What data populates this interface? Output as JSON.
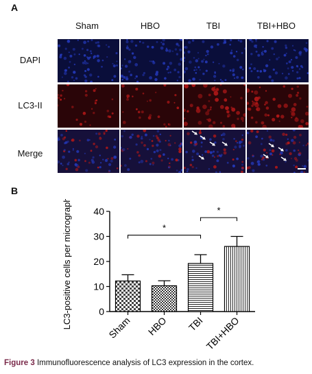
{
  "panel_a_letter": "A",
  "panel_b_letter": "B",
  "columns": [
    "Sham",
    "HBO",
    "TBI",
    "TBI+HBO"
  ],
  "rows": [
    "DAPI",
    "LC3-II",
    "Merge"
  ],
  "micrograph_colors": {
    "dapi_bg": "#0a0e3a",
    "dapi_dot": "#2438b8",
    "lc3_bg": "#2a0508",
    "lc3_dot": "#b01818",
    "merge_bg": "#16103a",
    "arrow": "#ffffff"
  },
  "arrows_shown_in": [
    "TBI",
    "TBI+HBO"
  ],
  "chart_data": {
    "type": "bar",
    "categories": [
      "Sham",
      "HBO",
      "TBI",
      "TBI+HBO"
    ],
    "values": [
      12.2,
      10.3,
      19.2,
      26.0
    ],
    "errors": [
      2.5,
      2.0,
      3.5,
      4.0
    ],
    "bar_patterns": [
      "checker",
      "checker-fine",
      "horizontal-lines",
      "vertical-lines"
    ],
    "ylabel": "LC3-positive cells per micrograph (%)",
    "ylim": [
      0,
      40
    ],
    "yticks": [
      0,
      10,
      20,
      30,
      40
    ],
    "significance": [
      {
        "from": "Sham",
        "to": "TBI",
        "label": "*"
      },
      {
        "from": "TBI",
        "to": "TBI+HBO",
        "label": "*"
      }
    ]
  },
  "caption": {
    "figure_label": "Figure 3",
    "text": "Immunofluorescence analysis of LC3 expression in the cortex."
  }
}
